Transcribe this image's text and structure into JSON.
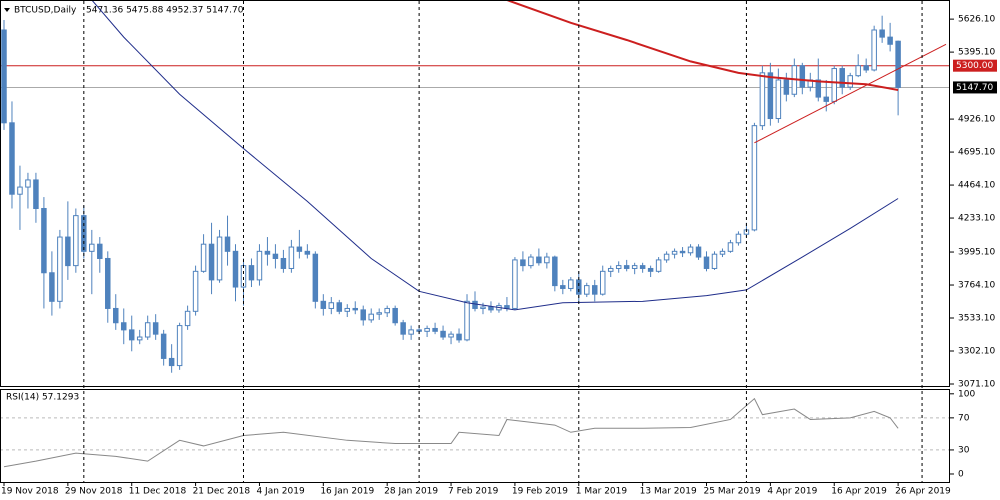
{
  "chart_data": {
    "type": "candlestick",
    "title": "BTCUSD,Daily",
    "ohlc_label": "5471.36 5475.88 4952.37 5147.70",
    "color": "#4f82bd",
    "ylim": [
      3050,
      5753
    ],
    "yticks": [
      {
        "value": 5626.1,
        "label": "5626.10"
      },
      {
        "value": 5395.1,
        "label": "5395.10"
      },
      {
        "value": 4926.1,
        "label": "4926.10"
      },
      {
        "value": 4695.1,
        "label": "4695.10"
      },
      {
        "value": 4464.1,
        "label": "4464.10"
      },
      {
        "value": 4233.1,
        "label": "4233.10"
      },
      {
        "value": 3995.1,
        "label": "3995.10"
      },
      {
        "value": 3764.1,
        "label": "3764.10"
      },
      {
        "value": 3533.1,
        "label": "3533.10"
      },
      {
        "value": 3302.1,
        "label": "3302.10"
      },
      {
        "value": 3071.1,
        "label": "3071.10"
      }
    ],
    "xlim": [
      -0.5,
      118.5
    ],
    "xticks": [
      {
        "value": 0,
        "label": "19 Nov 2018"
      },
      {
        "value": 8,
        "label": "29 Nov 2018"
      },
      {
        "value": 16,
        "label": "11 Dec 2018"
      },
      {
        "value": 24,
        "label": "21 Dec 2018"
      },
      {
        "value": 32,
        "label": "4 Jan 2019"
      },
      {
        "value": 40,
        "label": "16 Jan 2019"
      },
      {
        "value": 48,
        "label": "28 Jan 2019"
      },
      {
        "value": 56,
        "label": "7 Feb 2019"
      },
      {
        "value": 64,
        "label": "19 Feb 2019"
      },
      {
        "value": 72,
        "label": "1 Mar 2019"
      },
      {
        "value": 80,
        "label": "13 Mar 2019"
      },
      {
        "value": 88,
        "label": "25 Mar 2019"
      },
      {
        "value": 96,
        "label": "4 Apr 2019"
      },
      {
        "value": 104,
        "label": "16 Apr 2019"
      },
      {
        "value": 112,
        "label": "26 Apr 2019"
      }
    ],
    "xgrid": [
      10,
      30,
      52,
      72,
      93,
      115
    ],
    "ohlc": [
      [
        5550,
        5620,
        4850,
        4900
      ],
      [
        4900,
        5050,
        4300,
        4400
      ],
      [
        4400,
        4600,
        4150,
        4450
      ],
      [
        4450,
        4550,
        4300,
        4500
      ],
      [
        4500,
        4550,
        4200,
        4300
      ],
      [
        4300,
        4380,
        3600,
        3850
      ],
      [
        3850,
        4000,
        3550,
        3650
      ],
      [
        3650,
        4150,
        3600,
        4100
      ],
      [
        4100,
        4350,
        3800,
        3900
      ],
      [
        3900,
        4300,
        3850,
        4250
      ],
      [
        4250,
        4320,
        3950,
        4000
      ],
      [
        4000,
        4150,
        3700,
        4050
      ],
      [
        4050,
        4100,
        3850,
        3950
      ],
      [
        3950,
        4000,
        3500,
        3600
      ],
      [
        3600,
        3700,
        3450,
        3500
      ],
      [
        3500,
        3600,
        3350,
        3450
      ],
      [
        3450,
        3550,
        3300,
        3380
      ],
      [
        3380,
        3450,
        3350,
        3400
      ],
      [
        3400,
        3550,
        3380,
        3500
      ],
      [
        3500,
        3560,
        3380,
        3420
      ],
      [
        3420,
        3450,
        3200,
        3250
      ],
      [
        3250,
        3350,
        3150,
        3200
      ],
      [
        3200,
        3500,
        3170,
        3480
      ],
      [
        3480,
        3620,
        3450,
        3580
      ],
      [
        3580,
        3900,
        3550,
        3860
      ],
      [
        3860,
        4120,
        3850,
        4050
      ],
      [
        4050,
        4200,
        3700,
        3800
      ],
      [
        3800,
        4150,
        3780,
        4100
      ],
      [
        4100,
        4250,
        3900,
        4000
      ],
      [
        4000,
        4050,
        3650,
        3750
      ],
      [
        3750,
        3950,
        3620,
        3900
      ],
      [
        3900,
        3950,
        3750,
        3800
      ],
      [
        3800,
        4050,
        3760,
        4000
      ],
      [
        4000,
        4100,
        3900,
        3980
      ],
      [
        3980,
        4050,
        3880,
        3950
      ],
      [
        3950,
        4010,
        3850,
        3880
      ],
      [
        3880,
        4080,
        3850,
        4030
      ],
      [
        4030,
        4150,
        3950,
        4000
      ],
      [
        4000,
        4050,
        3950,
        3980
      ],
      [
        3980,
        4000,
        3600,
        3650
      ],
      [
        3650,
        3700,
        3550,
        3600
      ],
      [
        3600,
        3680,
        3560,
        3640
      ],
      [
        3640,
        3660,
        3560,
        3580
      ],
      [
        3580,
        3630,
        3540,
        3600
      ],
      [
        3600,
        3650,
        3560,
        3590
      ],
      [
        3590,
        3620,
        3480,
        3520
      ],
      [
        3520,
        3600,
        3500,
        3560
      ],
      [
        3560,
        3600,
        3520,
        3570
      ],
      [
        3570,
        3620,
        3540,
        3600
      ],
      [
        3600,
        3620,
        3480,
        3500
      ],
      [
        3500,
        3520,
        3380,
        3420
      ],
      [
        3420,
        3480,
        3380,
        3450
      ],
      [
        3450,
        3480,
        3420,
        3440
      ],
      [
        3440,
        3480,
        3400,
        3460
      ],
      [
        3460,
        3500,
        3420,
        3440
      ],
      [
        3440,
        3480,
        3380,
        3400
      ],
      [
        3400,
        3440,
        3350,
        3420
      ],
      [
        3420,
        3460,
        3360,
        3380
      ],
      [
        3380,
        3700,
        3370,
        3650
      ],
      [
        3650,
        3720,
        3580,
        3600
      ],
      [
        3600,
        3640,
        3560,
        3610
      ],
      [
        3610,
        3650,
        3570,
        3590
      ],
      [
        3590,
        3640,
        3570,
        3620
      ],
      [
        3620,
        3680,
        3580,
        3600
      ],
      [
        3600,
        3960,
        3590,
        3940
      ],
      [
        3940,
        4000,
        3860,
        3900
      ],
      [
        3900,
        3980,
        3880,
        3960
      ],
      [
        3960,
        4020,
        3900,
        3920
      ],
      [
        3920,
        3990,
        3880,
        3960
      ],
      [
        3960,
        3970,
        3720,
        3760
      ],
      [
        3760,
        3800,
        3700,
        3740
      ],
      [
        3740,
        3820,
        3720,
        3800
      ],
      [
        3800,
        3860,
        3650,
        3700
      ],
      [
        3700,
        3780,
        3680,
        3760
      ],
      [
        3760,
        3800,
        3650,
        3700
      ],
      [
        3700,
        3900,
        3690,
        3860
      ],
      [
        3860,
        3900,
        3820,
        3880
      ],
      [
        3880,
        3930,
        3850,
        3900
      ],
      [
        3900,
        3940,
        3860,
        3880
      ],
      [
        3880,
        3920,
        3840,
        3900
      ],
      [
        3900,
        3920,
        3850,
        3880
      ],
      [
        3880,
        3900,
        3820,
        3860
      ],
      [
        3860,
        3960,
        3850,
        3940
      ],
      [
        3940,
        4000,
        3920,
        3980
      ],
      [
        3980,
        4020,
        3950,
        4000
      ],
      [
        4000,
        4030,
        3960,
        3990
      ],
      [
        3990,
        4050,
        3970,
        4030
      ],
      [
        4030,
        4050,
        3940,
        3960
      ],
      [
        3960,
        4000,
        3860,
        3880
      ],
      [
        3880,
        4000,
        3870,
        3980
      ],
      [
        3980,
        4020,
        3960,
        4000
      ],
      [
        4000,
        4080,
        3990,
        4060
      ],
      [
        4060,
        4140,
        4040,
        4120
      ],
      [
        4120,
        4200,
        4100,
        4150
      ],
      [
        4150,
        4900,
        4140,
        4880
      ],
      [
        4880,
        5300,
        4850,
        5250
      ],
      [
        5250,
        5320,
        4880,
        4930
      ],
      [
        4930,
        5280,
        4900,
        5200
      ],
      [
        5200,
        5250,
        5050,
        5100
      ],
      [
        5100,
        5350,
        5080,
        5300
      ],
      [
        5300,
        5320,
        5100,
        5150
      ],
      [
        5150,
        5250,
        5120,
        5200
      ],
      [
        5200,
        5350,
        5050,
        5080
      ],
      [
        5080,
        5200,
        4980,
        5050
      ],
      [
        5050,
        5300,
        5030,
        5280
      ],
      [
        5280,
        5300,
        5100,
        5150
      ],
      [
        5150,
        5250,
        5130,
        5230
      ],
      [
        5230,
        5380,
        5220,
        5300
      ],
      [
        5300,
        5350,
        5250,
        5270
      ],
      [
        5270,
        5580,
        5260,
        5550
      ],
      [
        5550,
        5650,
        5460,
        5500
      ],
      [
        5500,
        5600,
        5400,
        5450
      ],
      [
        5471.36,
        5475.88,
        4952.37,
        5147.7
      ]
    ],
    "series": [
      {
        "color": "#cc1f1f",
        "width": 2,
        "x": [
          63,
          71,
          78,
          86,
          92,
          96,
          102,
          108,
          112
        ],
        "values": [
          5760,
          5600,
          5480,
          5330,
          5250,
          5220,
          5190,
          5170,
          5130
        ]
      },
      {
        "color": "#1f2d8a",
        "width": 1,
        "x": [
          11,
          15,
          22,
          30,
          38,
          46,
          52,
          58,
          64,
          70,
          80,
          88,
          93,
          100,
          106,
          112
        ],
        "values": [
          5760,
          5500,
          5100,
          4720,
          4350,
          3950,
          3720,
          3640,
          3590,
          3640,
          3650,
          3690,
          3730,
          3960,
          4160,
          4370
        ]
      }
    ],
    "trendline": {
      "color": "#cc1f1f",
      "x": [
        94,
        118
      ],
      "values": [
        4760,
        5450
      ]
    },
    "hlines": [
      {
        "value": 5300,
        "label": "5300.00",
        "color": "#cc1f1f"
      },
      {
        "value": 5147.7,
        "label": "5147.70",
        "color": "#000000"
      }
    ],
    "rsi": {
      "title": "RSI(14) 57.1293",
      "color": "#888888",
      "ylim": [
        -10,
        106
      ],
      "yticks": [
        100,
        70,
        30,
        0
      ],
      "levels": [
        70,
        30
      ],
      "x": [
        0,
        4,
        9,
        14,
        18,
        22,
        25,
        30,
        35,
        43,
        49,
        56,
        57,
        62,
        63,
        69,
        71,
        74,
        80,
        86,
        91,
        94,
        95,
        99,
        101,
        106,
        109,
        111,
        112
      ],
      "values": [
        9,
        16,
        26,
        22,
        16,
        42,
        35,
        48,
        52,
        42,
        38,
        38,
        52,
        48,
        68,
        61,
        52,
        57,
        57,
        58,
        68,
        94,
        74,
        81,
        68,
        70,
        78,
        70,
        57
      ]
    }
  }
}
